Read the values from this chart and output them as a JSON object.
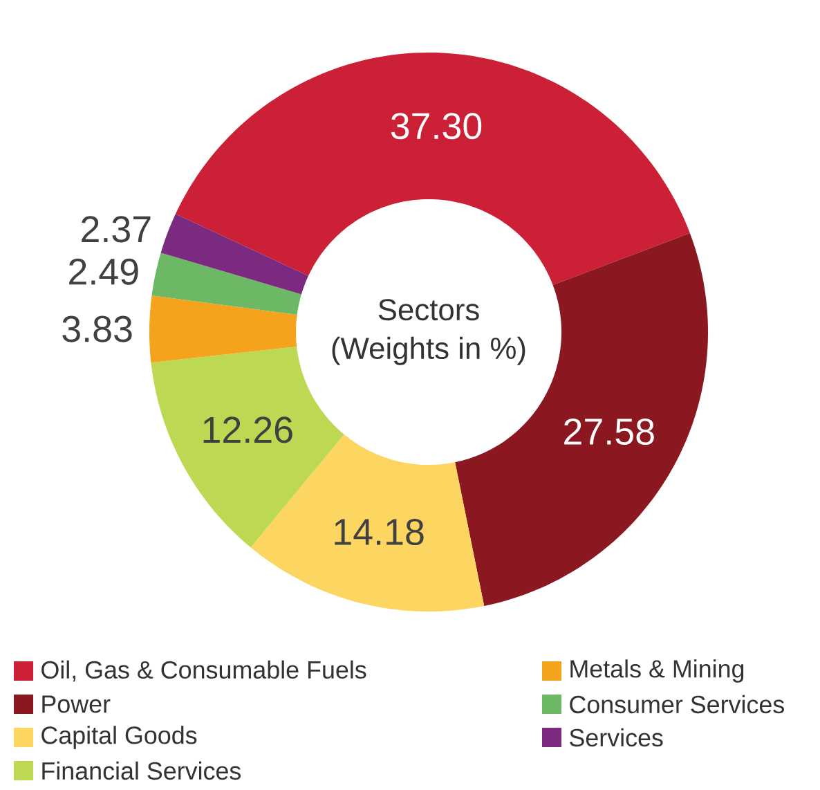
{
  "chart_data": {
    "type": "donut",
    "title": "Sectors",
    "subtitle": "(Weights in %)",
    "categories": [
      "Oil, Gas & Consumable Fuels",
      "Power",
      "Capital Goods",
      "Financial Services",
      "Metals & Mining",
      "Consumer Services",
      "Services"
    ],
    "values": [
      37.3,
      27.58,
      14.18,
      12.26,
      3.83,
      2.49,
      2.37
    ],
    "colors": [
      "#cc2037",
      "#8b1720",
      "#fdd561",
      "#bdd852",
      "#f5a31d",
      "#6cb865",
      "#7c2a80"
    ],
    "value_labels": [
      "37.30",
      "27.58",
      "14.18",
      "12.26",
      "3.83",
      "2.49",
      "2.37"
    ],
    "legend": "bottom"
  }
}
